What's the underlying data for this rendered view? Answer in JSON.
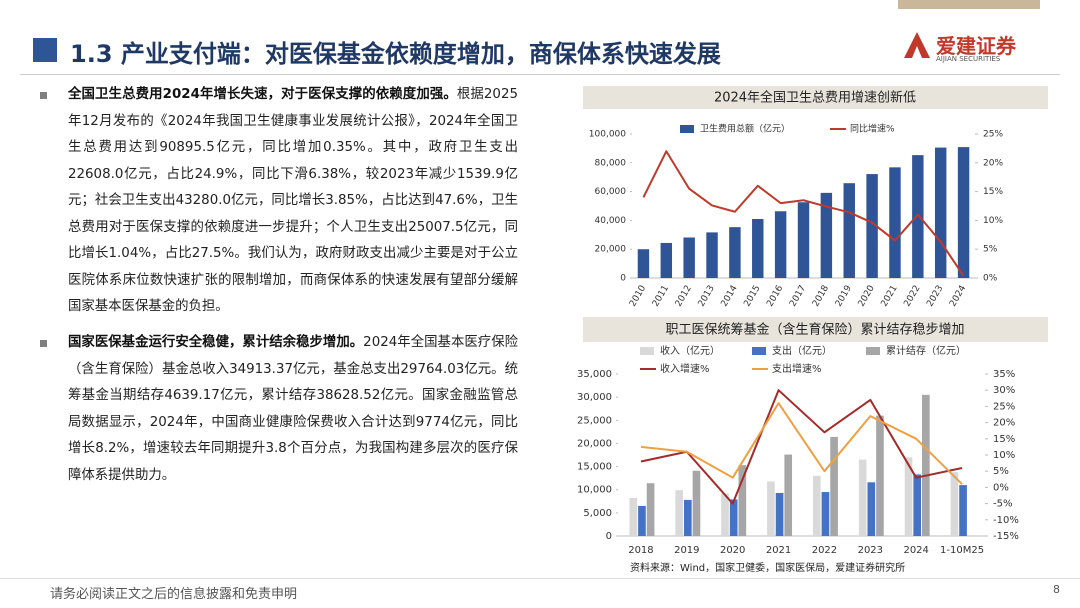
{
  "header": {
    "title": "1.3 产业支付端：对医保基金依赖度增加，商保体系快速发展",
    "logo": "爱建证券",
    "logo_en": "AIJIAN SECURITIES"
  },
  "bullets": [
    {
      "bold": "全国卫生总费用2024年增长失速，对于医保支撑的依赖度加强。",
      "text": "根据2025年12月发布的《2024年我国卫生健康事业发展统计公报》，2024年全国卫生总费用达到90895.5亿元，同比增加0.35%。其中，政府卫生支出22608.0亿元，占比24.9%，同比下滑6.38%，较2023年减少1539.9亿元；社会卫生支出43280.0亿元，同比增长3.85%，占比达到47.6%，卫生总费用对于医保支撑的依赖度进一步提升；个人卫生支出25007.5亿元，同比增长1.04%，占比27.5%。我们认为，政府财政支出减少主要是对于公立医院体系床位数快速扩张的限制增加，而商保体系的快速发展有望部分缓解国家基本医保基金的负担。"
    },
    {
      "bold": "国家医保基金运行安全稳健，累计结余稳步增加。",
      "text": "2024年全国基本医疗保险（含生育保险）基金总收入34913.37亿元，基金总支出29764.03亿元。统筹基金当期结存4639.17亿元，累计结存38628.52亿元。国家金融监管总局数据显示，2024年，中国商业健康险保费收入合计达到9774亿元，同比增长8.2%，增速较去年同期提升3.8个百分点，为我国构建多层次的医疗保障体系提供助力。"
    }
  ],
  "chart_data": [
    {
      "type": "combo",
      "title": "2024年全国卫生总费用增速创新低",
      "categories": [
        "2010",
        "2011",
        "2012",
        "2013",
        "2014",
        "2015",
        "2016",
        "2017",
        "2018",
        "2019",
        "2020",
        "2021",
        "2022",
        "2023",
        "2024"
      ],
      "series": [
        {
          "name": "卫生费用总额（亿元）",
          "kind": "bar",
          "color": "#2f5597",
          "values": [
            19980,
            24346,
            28119,
            31669,
            35312,
            40975,
            46345,
            52598,
            59122,
            65841,
            72175,
            76845,
            85327,
            90576,
            90895.5
          ]
        },
        {
          "name": "同比增速%",
          "kind": "line",
          "axis": "y2",
          "color": "#c0392b",
          "values": [
            14,
            22,
            15.5,
            12.6,
            11.5,
            16,
            13,
            13.5,
            12.4,
            11.4,
            9.6,
            6.5,
            11,
            6.3,
            0.35
          ]
        }
      ],
      "ylim": [
        0,
        100000
      ],
      "yticks": [
        0,
        {
          "value": 20000,
          "label": "20,000"
        },
        {
          "value": 40000,
          "label": "40,000"
        },
        {
          "value": 60000,
          "label": "60,000"
        },
        {
          "value": 80000,
          "label": "80,000"
        },
        {
          "value": 100000,
          "label": "100,000"
        }
      ],
      "y2lim": [
        0,
        25
      ],
      "y2ticks": [
        {
          "value": 0,
          "label": "0%"
        },
        {
          "value": 5,
          "label": "5%"
        },
        {
          "value": 10,
          "label": "10%"
        },
        {
          "value": 15,
          "label": "15%"
        },
        {
          "value": 20,
          "label": "20%"
        },
        {
          "value": 25,
          "label": "25%"
        }
      ]
    },
    {
      "type": "combo",
      "title": "职工医保统筹基金（含生育保险）累计结存稳步增加",
      "categories": [
        "2018",
        "2019",
        "2020",
        "2021",
        "2022",
        "2023",
        "2024",
        "1-10M25"
      ],
      "series": [
        {
          "name": "收入（亿元）",
          "kind": "bar",
          "color": "#d9d9d9",
          "values": [
            8200,
            9900,
            9200,
            11800,
            13000,
            16500,
            17000,
            13800
          ]
        },
        {
          "name": "支出（亿元）",
          "kind": "bar",
          "color": "#4472c4",
          "values": [
            6500,
            7800,
            7900,
            9300,
            9500,
            11600,
            13300,
            11000
          ]
        },
        {
          "name": "累计结存（亿元）",
          "kind": "bar",
          "color": "#a6a6a6",
          "values": [
            11400,
            14100,
            15300,
            17600,
            21400,
            26000,
            30500,
            null
          ]
        },
        {
          "name": "收入增速%",
          "kind": "line",
          "axis": "y2",
          "color": "#a52a2a",
          "values": [
            8,
            11,
            -5,
            30,
            17,
            27,
            3,
            6
          ]
        },
        {
          "name": "支出增速%",
          "kind": "line",
          "axis": "y2",
          "color": "#f0a040",
          "values": [
            12.5,
            11,
            3,
            26,
            5,
            22,
            15,
            1
          ]
        }
      ],
      "ylim": [
        0,
        35000
      ],
      "yticks": [
        0,
        {
          "value": 5000,
          "label": "5,000"
        },
        {
          "value": 10000,
          "label": "10,000"
        },
        {
          "value": 15000,
          "label": "15,000"
        },
        {
          "value": 20000,
          "label": "20,000"
        },
        {
          "value": 25000,
          "label": "25,000"
        },
        {
          "value": 30000,
          "label": "30,000"
        },
        {
          "value": 35000,
          "label": "35,000"
        }
      ],
      "y2lim": [
        -15,
        35
      ],
      "y2ticks": [
        {
          "value": -15,
          "label": "-15%"
        },
        {
          "value": -10,
          "label": "-10%"
        },
        {
          "value": -5,
          "label": "-5%"
        },
        {
          "value": 0,
          "label": "0%"
        },
        {
          "value": 5,
          "label": "5%"
        },
        {
          "value": 10,
          "label": "10%"
        },
        {
          "value": 15,
          "label": "15%"
        },
        {
          "value": 20,
          "label": "20%"
        },
        {
          "value": 25,
          "label": "25%"
        },
        {
          "value": 30,
          "label": "30%"
        },
        {
          "value": 35,
          "label": "35%"
        }
      ]
    }
  ],
  "source": "资料来源：Wind，国家卫健委，国家医保局，爱建证券研究所",
  "footer": {
    "disclaimer": "请务必阅读正文之后的信息披露和免责申明",
    "page": "8"
  }
}
